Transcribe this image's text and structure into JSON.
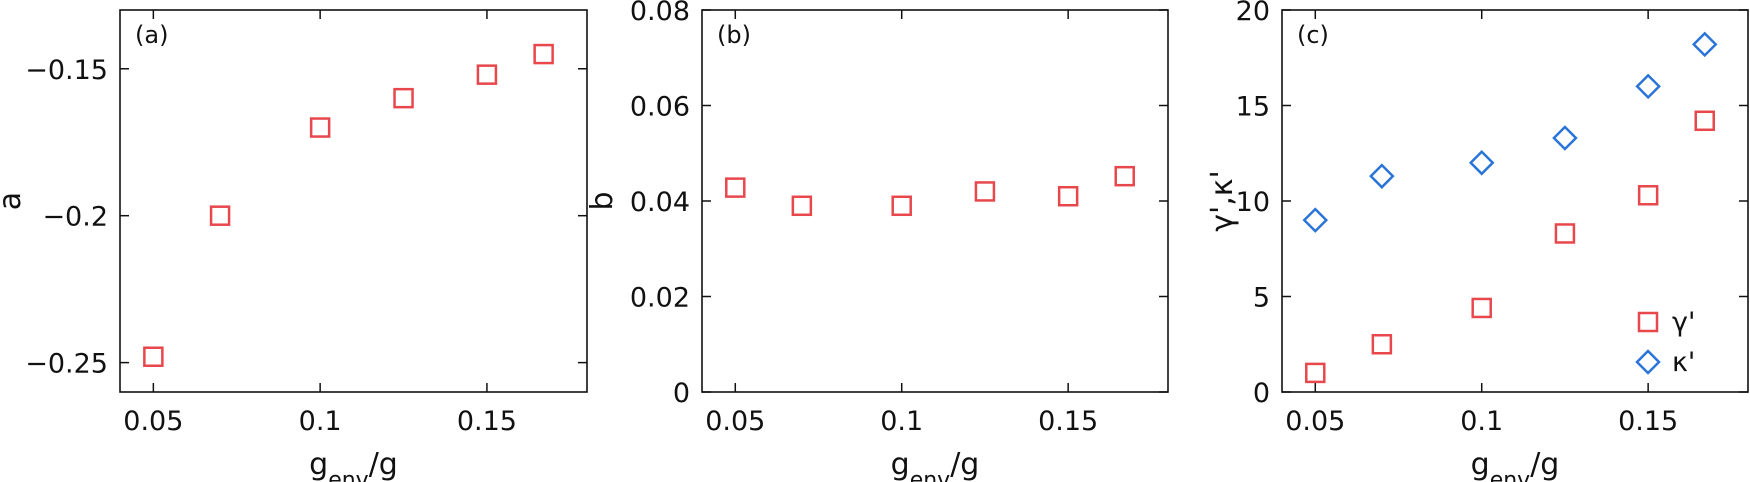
{
  "colors": {
    "square": "#e8474c",
    "diamond": "#2a74d8",
    "axis": "#111111"
  },
  "chart_data": [
    {
      "type": "scatter",
      "panel_label": "(a)",
      "xlabel": "g",
      "xlabel_sub": "env",
      "xlabel_suffix": "/g",
      "ylabel": "a",
      "xlim": [
        0.04,
        0.18
      ],
      "ylim": [
        -0.26,
        -0.13
      ],
      "xticks": [
        0.05,
        0.1,
        0.15
      ],
      "xtick_labels": [
        "0.05",
        "0.1",
        "0.15"
      ],
      "yticks": [
        -0.25,
        -0.2,
        -0.15
      ],
      "ytick_labels": [
        "−0.25",
        "−0.2",
        "−0.15"
      ],
      "series": [
        {
          "marker": "square",
          "color": "#e8474c",
          "x": [
            0.05,
            0.07,
            0.1,
            0.125,
            0.15,
            0.167
          ],
          "y": [
            -0.248,
            -0.2,
            -0.17,
            -0.16,
            -0.152,
            -0.145
          ]
        }
      ]
    },
    {
      "type": "scatter",
      "panel_label": "(b)",
      "xlabel": "g",
      "xlabel_sub": "env",
      "xlabel_suffix": "/g",
      "ylabel": "b",
      "xlim": [
        0.04,
        0.18
      ],
      "ylim": [
        0,
        0.08
      ],
      "xticks": [
        0.05,
        0.1,
        0.15
      ],
      "xtick_labels": [
        "0.05",
        "0.1",
        "0.15"
      ],
      "yticks": [
        0,
        0.02,
        0.04,
        0.06,
        0.08
      ],
      "ytick_labels": [
        "0",
        "0.02",
        "0.04",
        "0.06",
        "0.08"
      ],
      "series": [
        {
          "marker": "square",
          "color": "#e8474c",
          "x": [
            0.05,
            0.07,
            0.1,
            0.125,
            0.15,
            0.167
          ],
          "y": [
            0.0428,
            0.039,
            0.039,
            0.042,
            0.041,
            0.0452
          ]
        }
      ]
    },
    {
      "type": "scatter",
      "panel_label": "(c)",
      "xlabel": "g",
      "xlabel_sub": "env",
      "xlabel_suffix": "/g",
      "ylabel": "γ',κ'",
      "xlim": [
        0.04,
        0.18
      ],
      "ylim": [
        0,
        20
      ],
      "xticks": [
        0.05,
        0.1,
        0.15
      ],
      "xtick_labels": [
        "0.05",
        "0.1",
        "0.15"
      ],
      "yticks": [
        0,
        5,
        10,
        15,
        20
      ],
      "ytick_labels": [
        "0",
        "5",
        "10",
        "15",
        "20"
      ],
      "legend_position": "bottom-right",
      "series": [
        {
          "name": "γ'",
          "marker": "square",
          "color": "#e8474c",
          "x": [
            0.05,
            0.07,
            0.1,
            0.125,
            0.15,
            0.167
          ],
          "y": [
            1.0,
            2.5,
            4.4,
            8.3,
            10.3,
            14.2
          ]
        },
        {
          "name": "κ'",
          "marker": "diamond",
          "color": "#2a74d8",
          "x": [
            0.05,
            0.07,
            0.1,
            0.125,
            0.15,
            0.167
          ],
          "y": [
            9.0,
            11.3,
            12.0,
            13.3,
            16.0,
            18.2
          ]
        }
      ]
    }
  ]
}
